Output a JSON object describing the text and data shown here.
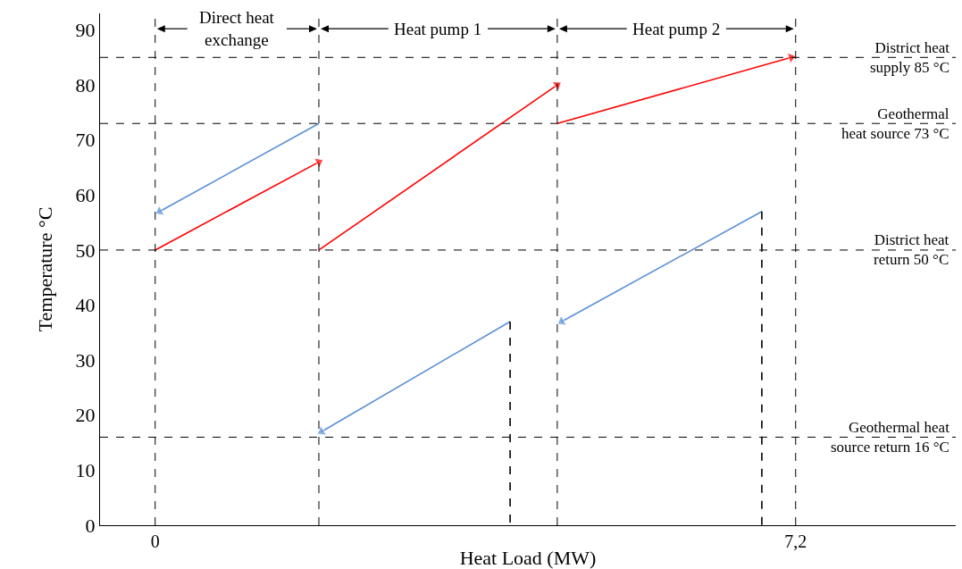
{
  "chart_data": {
    "type": "line",
    "xlabel": "Heat Load (MW)",
    "ylabel": "Temperature °C",
    "xlim": [
      -0.62,
      9.0
    ],
    "ylim": [
      0,
      93
    ],
    "xticks": [
      {
        "value": 0,
        "label": "0"
      },
      {
        "value": 7.2,
        "label": "7,2"
      }
    ],
    "yticks": [
      0,
      10,
      20,
      30,
      40,
      50,
      60,
      70,
      80,
      90
    ],
    "grid": false,
    "series": [
      {
        "color": "#5b8fd6",
        "x": [
          1.84,
          0.05
        ],
        "values": [
          73,
          57
        ],
        "marker": "triangle"
      },
      {
        "color": "#ff0000",
        "x": [
          0,
          1.84
        ],
        "values": [
          50,
          66
        ],
        "marker": "triangle"
      },
      {
        "color": "#ff0000",
        "x": [
          1.84,
          4.52
        ],
        "values": [
          50,
          80
        ],
        "marker": "triangle"
      },
      {
        "color": "#ff0000",
        "x": [
          4.52,
          7.15
        ],
        "values": [
          73,
          85
        ],
        "marker": "triangle"
      },
      {
        "color": "#5b8fd6",
        "x": [
          3.99,
          1.87
        ],
        "values": [
          37,
          17
        ],
        "marker": "triangle"
      },
      {
        "color": "#5b8fd6",
        "x": [
          6.82,
          4.57
        ],
        "values": [
          57,
          37
        ],
        "marker": "triangle"
      },
      {
        "color": "#000000",
        "x": [
          3.99,
          3.99
        ],
        "values": [
          37,
          0
        ],
        "line_style": "dashed"
      },
      {
        "color": "#000000",
        "x": [
          6.82,
          6.82
        ],
        "values": [
          57,
          0
        ],
        "line_style": "dashed"
      }
    ],
    "ref_lines": [
      {
        "axis": "y",
        "value": 85,
        "label": "District heat\nsupply 85 °C",
        "line_style": "dashed"
      },
      {
        "axis": "y",
        "value": 73,
        "label": "Geothermal\nheat source 73 °C",
        "line_style": "dashed"
      },
      {
        "axis": "y",
        "value": 50,
        "label": "District heat\nreturn 50 °C",
        "line_style": "dashed"
      },
      {
        "axis": "y",
        "value": 16,
        "label": "Geothermal heat\nsource return 16 °C",
        "line_style": "dashed"
      },
      {
        "axis": "x",
        "value": 0,
        "line_style": "dashed"
      },
      {
        "axis": "x",
        "value": 1.84,
        "line_style": "dashed"
      },
      {
        "axis": "x",
        "value": 4.52,
        "line_style": "dashed"
      },
      {
        "axis": "x",
        "value": 7.2,
        "line_style": "dashed"
      }
    ],
    "annotations": [
      "Direct heat\nexchange",
      "Heat pump 1",
      "Heat pump 2"
    ]
  }
}
